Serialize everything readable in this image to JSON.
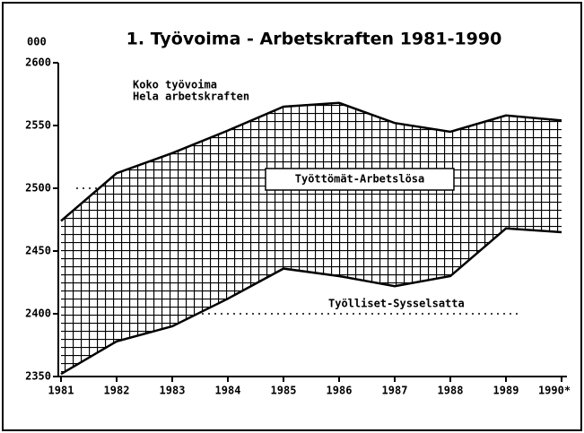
{
  "chart_data": {
    "type": "band",
    "title": "1. Työvoima - Arbetskraften 1981-1990",
    "y_label": "000",
    "categories": [
      "1981",
      "1982",
      "1983",
      "1984",
      "1985",
      "1986",
      "1987",
      "1988",
      "1989",
      "1990*"
    ],
    "series": [
      {
        "values": [
          2474,
          2512,
          2528,
          2546,
          2565,
          2568,
          2552,
          2545,
          2558,
          2554
        ],
        "color": "#000000"
      },
      {
        "values": [
          2352,
          2378,
          2390,
          2412,
          2436,
          2430,
          2422,
          2430,
          2468,
          2465
        ],
        "color": "#000000"
      }
    ],
    "ylim": [
      2350,
      2600
    ],
    "yticks": [
      2350,
      2400,
      2450,
      2500,
      2550,
      2600
    ],
    "dotted_lines": [
      2400,
      2500
    ],
    "annotations": [
      "Koko työvoima",
      "Hela arbetskraften",
      "Työttömät-Arbetslösa",
      "Työlliset-Sysselsatta"
    ]
  }
}
